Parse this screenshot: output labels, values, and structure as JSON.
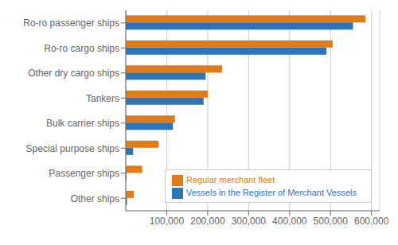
{
  "chart_data": {
    "type": "bar",
    "orientation": "horizontal",
    "categories": [
      "Ro-ro passenger ships",
      "Ro-ro cargo ships",
      "Other dry cargo ships",
      "Tankers",
      "Bulk carrier ships",
      "Special purpose ships",
      "Passenger ships",
      "Other ships"
    ],
    "series": [
      {
        "name": "Regular merchant fleet",
        "color": "#E07B1A",
        "values": [
          585000,
          505000,
          235000,
          200000,
          120000,
          80000,
          40000,
          20000
        ]
      },
      {
        "name": "Vessels in the Register of Merchant Vessels",
        "color": "#2E75B6",
        "values": [
          555000,
          490000,
          195000,
          190000,
          115000,
          18000,
          2000,
          3000
        ]
      }
    ],
    "xlim": [
      0,
      620000
    ],
    "xticks": [
      {
        "value": 100000,
        "label": "100,000"
      },
      {
        "value": 200000,
        "label": "200,000"
      },
      {
        "value": 300000,
        "label": "300,000"
      },
      {
        "value": 400000,
        "label": "400,000"
      },
      {
        "value": 500000,
        "label": "500,000"
      },
      {
        "value": 600000,
        "label": "600,000"
      }
    ],
    "grid": true,
    "legend": "lower right"
  }
}
